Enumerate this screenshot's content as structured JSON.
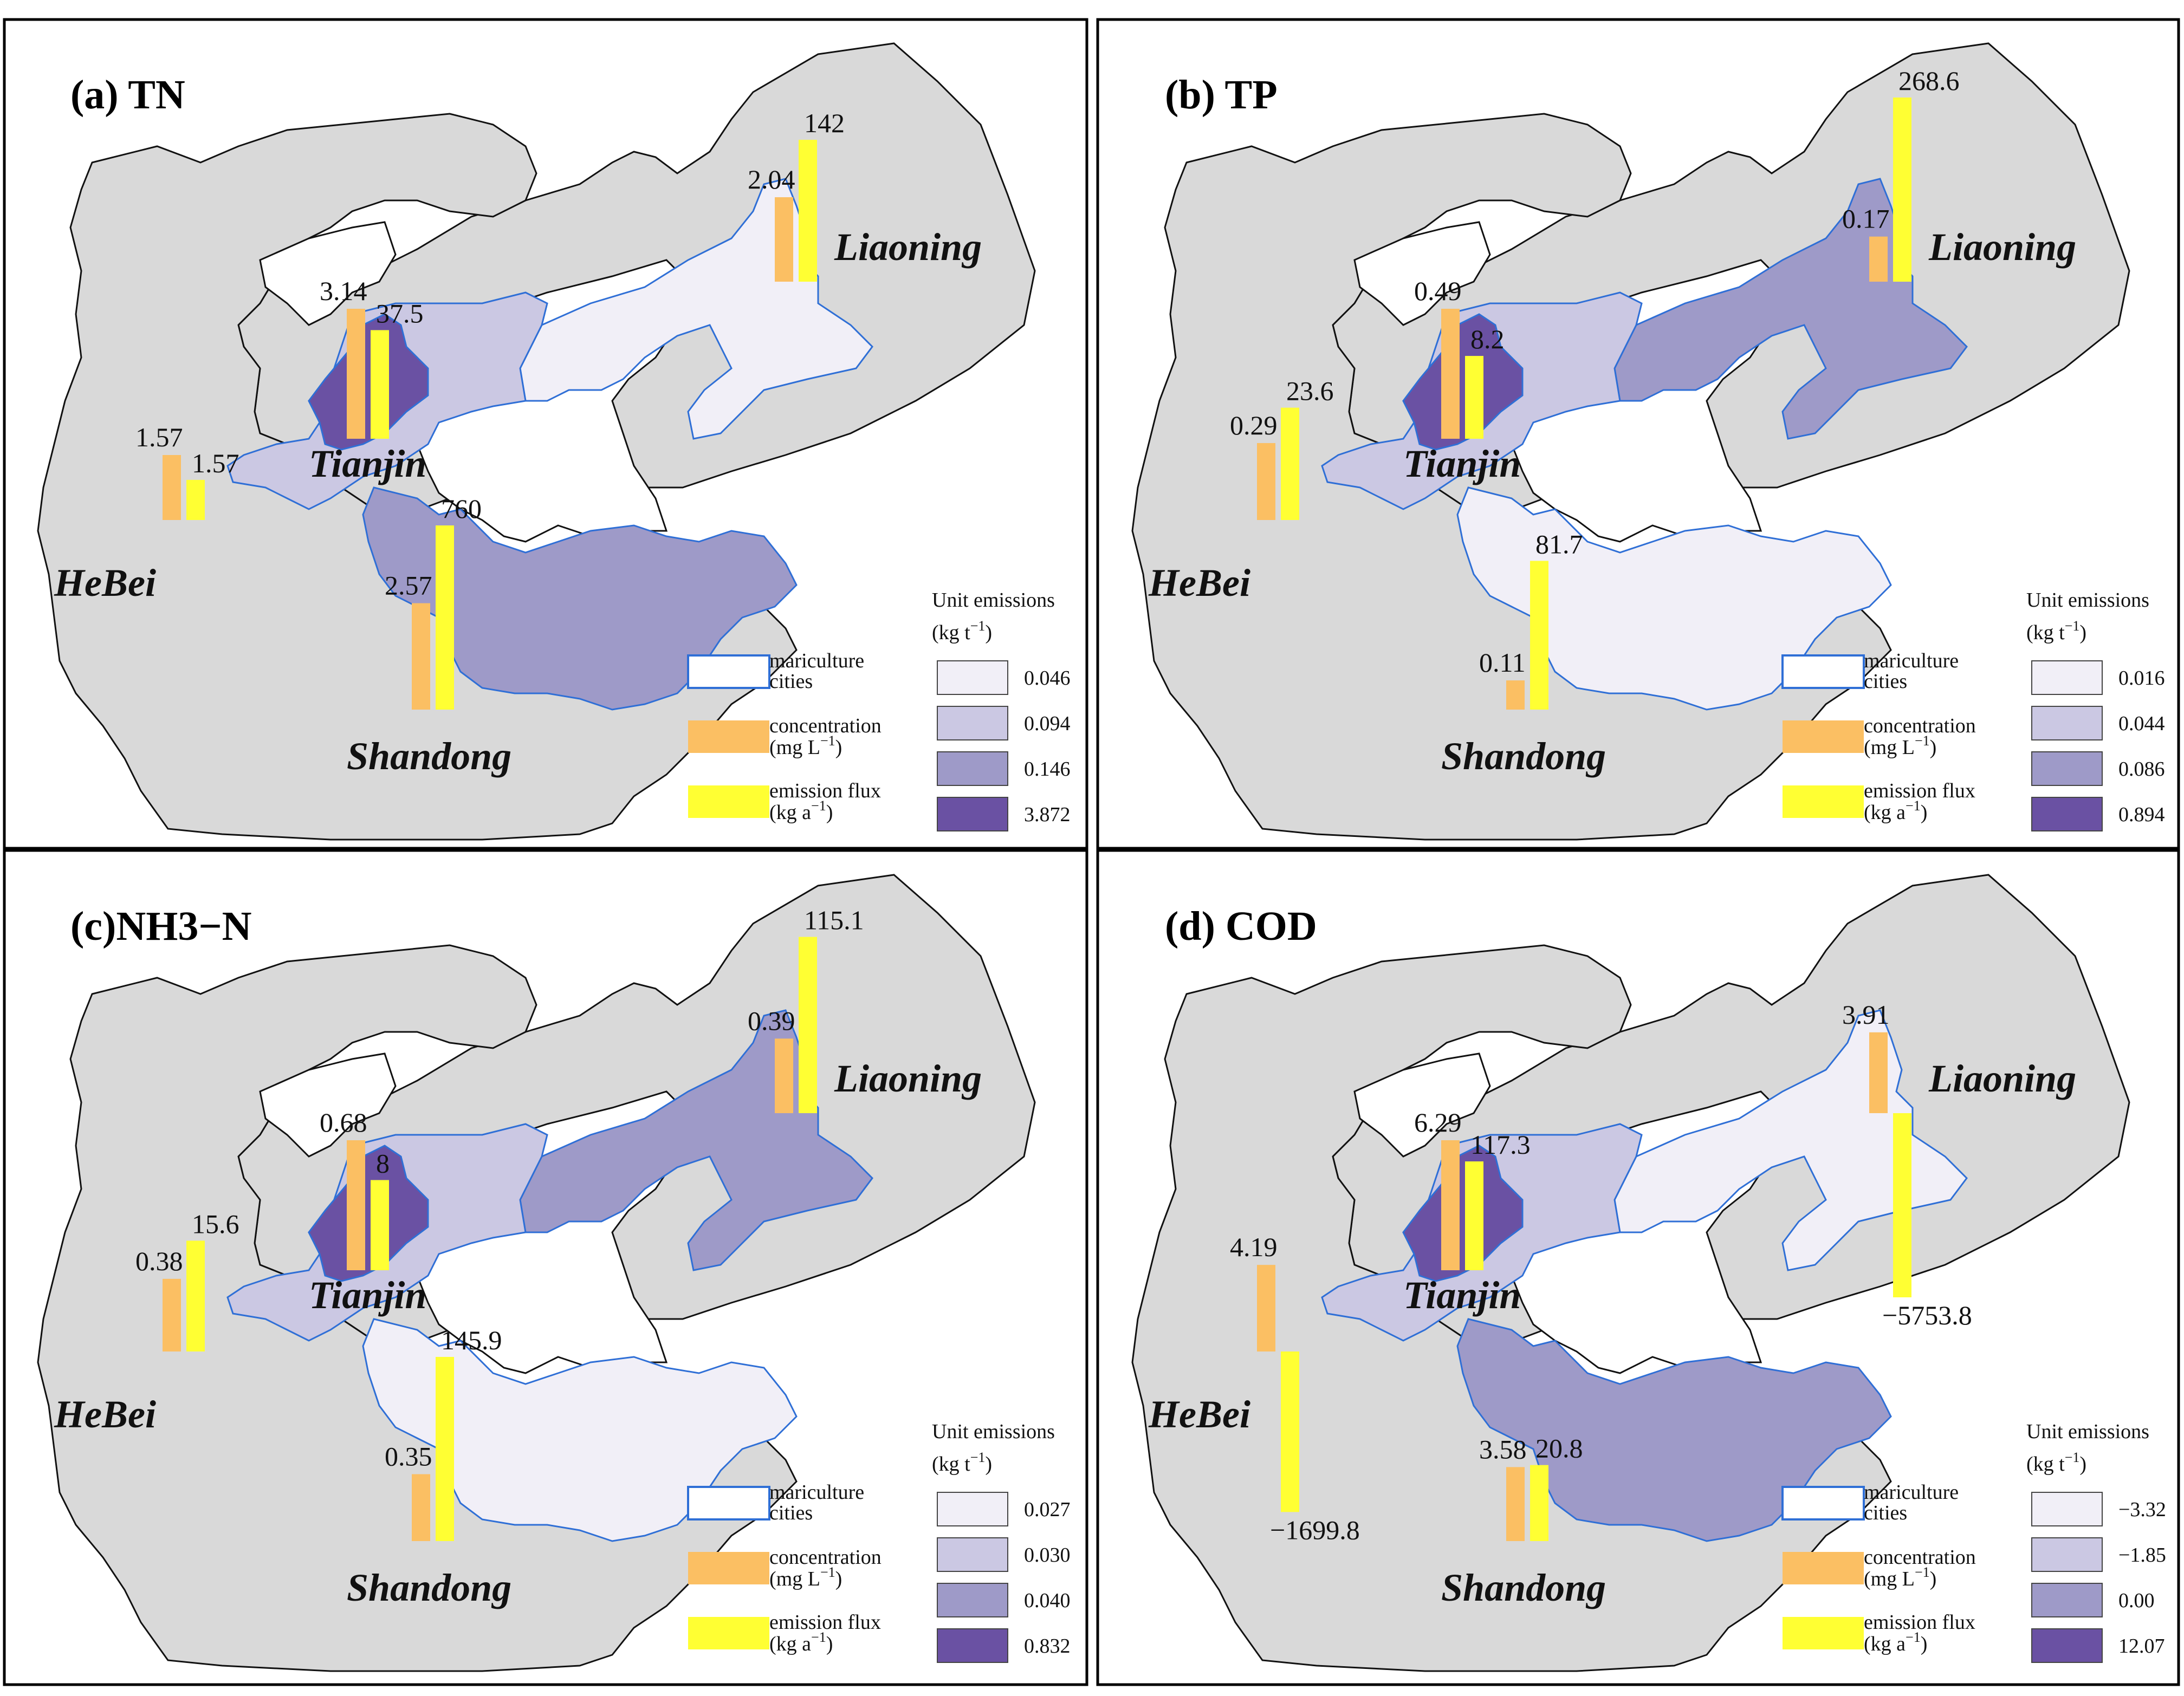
{
  "colors": {
    "land": "#d9d9d9",
    "concentration": "#fbbf63",
    "emission_flux": "#ffff33",
    "mariculture_border": "#2f6fd6",
    "classes": [
      "#f1eff7",
      "#cbc8e3",
      "#9e9ac8",
      "#6a51a3"
    ]
  },
  "legend_labels": {
    "mariculture": "mariculture",
    "cities": "cities",
    "concentration": "concentration",
    "concentration_unit": "(mg L",
    "emission_flux": "emission flux",
    "emission_flux_unit": "(kg a",
    "unit_emissions": "Unit emissions",
    "unit_emissions_unit": "(kg t"
  },
  "provinces": {
    "hebei": "HeBei",
    "tianjin": "Tianjin",
    "shandong": "Shandong",
    "liaoning": "Liaoning"
  },
  "panels": [
    {
      "title": "(a) TN",
      "classes": [
        "0.046",
        "0.094",
        "0.146",
        "3.872"
      ],
      "region_class": {
        "tianjin": 3,
        "hebei": 1,
        "shandong": 2,
        "liaoning": 0
      },
      "bars": {
        "hebei": {
          "concentration": 1.57,
          "flux": 1.57,
          "conc_label": "1.57",
          "flux_label": "1.57"
        },
        "tianjin": {
          "concentration": 3.14,
          "flux": 37.5,
          "conc_label": "3.14",
          "flux_label": "37.5"
        },
        "shandong": {
          "concentration": 2.57,
          "flux": 760,
          "conc_label": "2.57",
          "flux_label": "760"
        },
        "liaoning": {
          "concentration": 2.04,
          "flux": 142,
          "conc_label": "2.04",
          "flux_label": "142"
        }
      }
    },
    {
      "title": "(b) TP",
      "classes": [
        "0.016",
        "0.044",
        "0.086",
        "0.894"
      ],
      "region_class": {
        "tianjin": 3,
        "hebei": 1,
        "shandong": 0,
        "liaoning": 2
      },
      "bars": {
        "hebei": {
          "concentration": 0.29,
          "flux": 23.6,
          "conc_label": "0.29",
          "flux_label": "23.6"
        },
        "tianjin": {
          "concentration": 0.49,
          "flux": 8.2,
          "conc_label": "0.49",
          "flux_label": "8.2"
        },
        "shandong": {
          "concentration": 0.11,
          "flux": 81.7,
          "conc_label": "0.11",
          "flux_label": "81.7"
        },
        "liaoning": {
          "concentration": 0.17,
          "flux": 268.6,
          "conc_label": "0.17",
          "flux_label": "268.6"
        }
      }
    },
    {
      "title": "(c)NH3−N",
      "classes": [
        "0.027",
        "0.030",
        "0.040",
        "0.832"
      ],
      "region_class": {
        "tianjin": 3,
        "hebei": 1,
        "shandong": 0,
        "liaoning": 2
      },
      "bars": {
        "hebei": {
          "concentration": 0.38,
          "flux": 15.6,
          "conc_label": "0.38",
          "flux_label": "15.6"
        },
        "tianjin": {
          "concentration": 0.68,
          "flux": 8,
          "conc_label": "0.68",
          "flux_label": "8"
        },
        "shandong": {
          "concentration": 0.35,
          "flux": 145.9,
          "conc_label": "0.35",
          "flux_label": "145.9"
        },
        "liaoning": {
          "concentration": 0.39,
          "flux": 115.1,
          "conc_label": "0.39",
          "flux_label": "115.1"
        }
      }
    },
    {
      "title": "(d) COD",
      "classes": [
        "−3.32",
        "−1.85",
        "0.00",
        "12.07"
      ],
      "region_class": {
        "tianjin": 3,
        "hebei": 1,
        "shandong": 2,
        "liaoning": 0
      },
      "bars": {
        "hebei": {
          "concentration": 4.19,
          "flux": -1699.8,
          "conc_label": "4.19",
          "flux_label": "−1699.8"
        },
        "tianjin": {
          "concentration": 6.29,
          "flux": 117.3,
          "conc_label": "6.29",
          "flux_label": "117.3"
        },
        "shandong": {
          "concentration": 3.58,
          "flux": 20.8,
          "conc_label": "3.58",
          "flux_label": "20.8"
        },
        "liaoning": {
          "concentration": 3.91,
          "flux": -5753.8,
          "conc_label": "3.91",
          "flux_label": "−5753.8"
        }
      }
    }
  ]
}
